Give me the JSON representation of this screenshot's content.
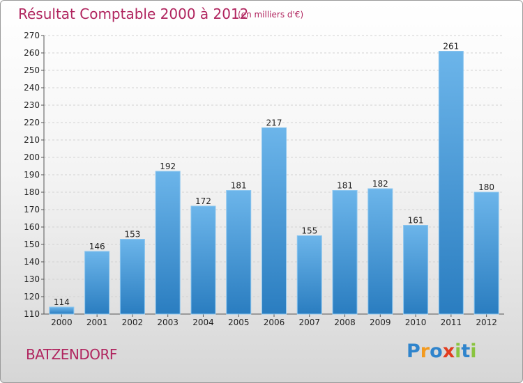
{
  "title": "Résultat Comptable 2000 à 2012",
  "subtitle": "(en milliers d'€)",
  "location": "BATZENDORF",
  "logo": {
    "letters": [
      "P",
      "r",
      "o",
      "x",
      "i",
      "t",
      "i"
    ],
    "colors": [
      "#2f84cc",
      "#f39a1e",
      "#2f84cc",
      "#e23c1f",
      "#8ac43f",
      "#2f84cc",
      "#8ac43f"
    ]
  },
  "colors": {
    "bar_light": "#6cb5ea",
    "bar_dark": "#2a7dc0",
    "title": "#b0245e"
  },
  "chart_data": {
    "type": "bar",
    "categories": [
      "2000",
      "2001",
      "2002",
      "2003",
      "2004",
      "2005",
      "2006",
      "2007",
      "2008",
      "2009",
      "2010",
      "2011",
      "2012"
    ],
    "values": [
      114,
      146,
      153,
      192,
      172,
      181,
      217,
      155,
      181,
      182,
      161,
      261,
      180
    ],
    "ylim": [
      110,
      270
    ],
    "yticks": [
      110,
      120,
      130,
      140,
      150,
      160,
      170,
      180,
      190,
      200,
      210,
      220,
      230,
      240,
      250,
      260,
      270
    ],
    "grid": true
  }
}
